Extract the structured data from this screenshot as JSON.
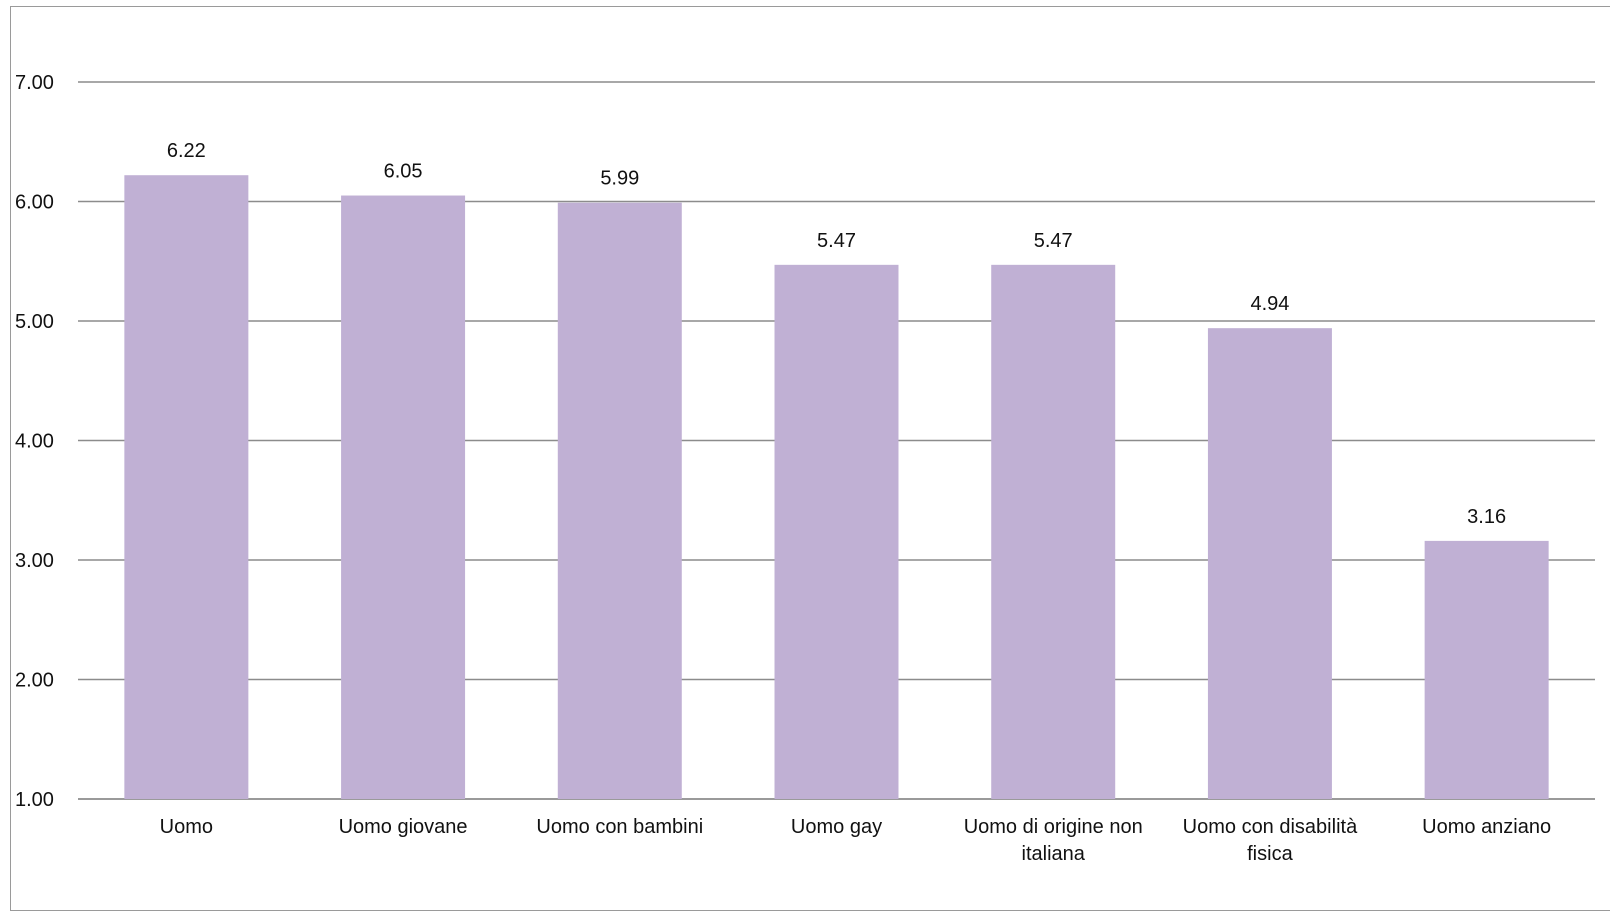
{
  "chart_data": {
    "type": "bar",
    "title": "",
    "xlabel": "",
    "ylabel": "",
    "categories": [
      [
        "Uomo"
      ],
      [
        "Uomo giovane"
      ],
      [
        "Uomo con bambini"
      ],
      [
        "Uomo gay"
      ],
      [
        "Uomo di origine non",
        "italiana"
      ],
      [
        "Uomo con disabilità",
        "fisica"
      ],
      [
        "Uomo anziano"
      ]
    ],
    "values": [
      6.22,
      6.05,
      5.99,
      5.47,
      5.47,
      4.94,
      3.16
    ],
    "data_labels": [
      "6.22",
      "6.05",
      "5.99",
      "5.47",
      "5.47",
      "4.94",
      "3.16"
    ],
    "ylim": [
      1,
      7
    ],
    "yticks": [
      1,
      2,
      3,
      4,
      5,
      6,
      7
    ],
    "ytick_labels": [
      "1.00",
      "2.00",
      "3.00",
      "4.00",
      "5.00",
      "6.00",
      "7.00"
    ],
    "grid": true,
    "legend": "none",
    "bar_color": "#c0b0d4",
    "grid_color": "#8c8c8c"
  }
}
